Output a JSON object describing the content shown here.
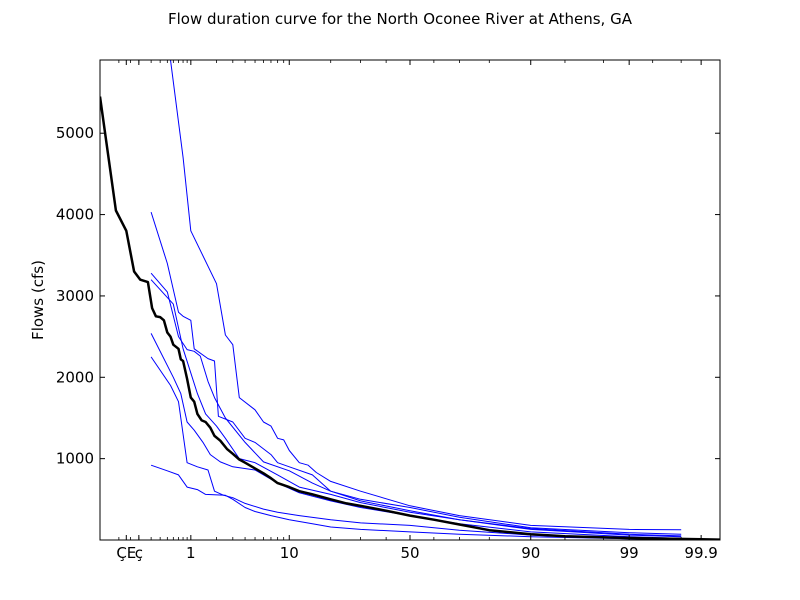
{
  "chart_data": {
    "type": "line",
    "title": "Flow duration curve for the North Oconee River at Athens, GA",
    "xlabel": "",
    "ylabel": "Flows (cfs)",
    "x_scale": "normal probability (exceedance %)",
    "xlim": [
      0.05,
      99.95
    ],
    "ylim": [
      0,
      5900
    ],
    "x_ticks": [
      {
        "value": 0.13,
        "label": "ÇE"
      },
      {
        "value": 0.2,
        "label": "ç"
      },
      {
        "value": 1,
        "label": "1"
      },
      {
        "value": 10,
        "label": "10"
      },
      {
        "value": 50,
        "label": "50"
      },
      {
        "value": 90,
        "label": "90"
      },
      {
        "value": 99,
        "label": "99"
      },
      {
        "value": 99.9,
        "label": "99.9"
      }
    ],
    "y_ticks": [
      1000,
      2000,
      3000,
      4000,
      5000
    ],
    "grid": false,
    "legend": "none",
    "colors": {
      "overall": "#000000",
      "annual": "#0000ff"
    },
    "overall_series": {
      "points": [
        [
          0.05,
          5450
        ],
        [
          0.09,
          4050
        ],
        [
          0.13,
          3800
        ],
        [
          0.17,
          3300
        ],
        [
          0.21,
          3200
        ],
        [
          0.27,
          3170
        ],
        [
          0.31,
          2850
        ],
        [
          0.35,
          2750
        ],
        [
          0.4,
          2740
        ],
        [
          0.45,
          2700
        ],
        [
          0.5,
          2550
        ],
        [
          0.55,
          2500
        ],
        [
          0.6,
          2400
        ],
        [
          0.7,
          2350
        ],
        [
          0.75,
          2220
        ],
        [
          0.8,
          2200
        ],
        [
          0.9,
          1980
        ],
        [
          1.0,
          1750
        ],
        [
          1.1,
          1700
        ],
        [
          1.2,
          1550
        ],
        [
          1.35,
          1470
        ],
        [
          1.5,
          1450
        ],
        [
          1.7,
          1380
        ],
        [
          1.9,
          1280
        ],
        [
          2.2,
          1220
        ],
        [
          2.6,
          1120
        ],
        [
          3,
          1060
        ],
        [
          3.5,
          990
        ],
        [
          4,
          950
        ],
        [
          5,
          880
        ],
        [
          6,
          820
        ],
        [
          7,
          760
        ],
        [
          8,
          700
        ],
        [
          10,
          650
        ],
        [
          12,
          600
        ],
        [
          15,
          560
        ],
        [
          20,
          500
        ],
        [
          25,
          450
        ],
        [
          30,
          420
        ],
        [
          40,
          360
        ],
        [
          50,
          300
        ],
        [
          60,
          250
        ],
        [
          70,
          190
        ],
        [
          80,
          120
        ],
        [
          90,
          70
        ],
        [
          95,
          45
        ],
        [
          99,
          25
        ],
        [
          99.9,
          10
        ],
        [
          99.95,
          5
        ]
      ]
    },
    "annual_series": [
      {
        "points": [
          [
            0.55,
            5900
          ],
          [
            0.8,
            4700
          ],
          [
            1,
            3800
          ],
          [
            2,
            3150
          ],
          [
            2.5,
            2520
          ],
          [
            3,
            2400
          ],
          [
            3.5,
            1750
          ],
          [
            5,
            1600
          ],
          [
            6,
            1450
          ],
          [
            7,
            1400
          ],
          [
            8,
            1250
          ],
          [
            9,
            1230
          ],
          [
            10,
            1100
          ],
          [
            12,
            950
          ],
          [
            14,
            920
          ],
          [
            16,
            830
          ],
          [
            20,
            720
          ],
          [
            30,
            600
          ],
          [
            50,
            420
          ],
          [
            70,
            300
          ],
          [
            90,
            180
          ],
          [
            99,
            130
          ],
          [
            99.8,
            125
          ]
        ]
      },
      {
        "points": [
          [
            0.3,
            4030
          ],
          [
            0.5,
            3400
          ],
          [
            0.7,
            2800
          ],
          [
            0.8,
            2750
          ],
          [
            1.0,
            2700
          ],
          [
            1.1,
            2350
          ],
          [
            1.6,
            2230
          ],
          [
            1.9,
            2200
          ],
          [
            2.1,
            1520
          ],
          [
            3,
            1450
          ],
          [
            4,
            1250
          ],
          [
            5,
            1200
          ],
          [
            7,
            1050
          ],
          [
            8,
            950
          ],
          [
            10,
            900
          ],
          [
            15,
            800
          ],
          [
            20,
            600
          ],
          [
            30,
            500
          ],
          [
            50,
            400
          ],
          [
            70,
            280
          ],
          [
            90,
            150
          ],
          [
            99,
            90
          ],
          [
            99.8,
            70
          ]
        ]
      },
      {
        "points": [
          [
            0.3,
            3280
          ],
          [
            0.5,
            3050
          ],
          [
            0.7,
            2500
          ],
          [
            0.9,
            2340
          ],
          [
            1.1,
            2320
          ],
          [
            1.3,
            2260
          ],
          [
            1.6,
            1950
          ],
          [
            1.9,
            1750
          ],
          [
            2.5,
            1500
          ],
          [
            4,
            1200
          ],
          [
            6,
            960
          ],
          [
            10,
            850
          ],
          [
            15,
            700
          ],
          [
            20,
            600
          ],
          [
            30,
            480
          ],
          [
            50,
            360
          ],
          [
            70,
            250
          ],
          [
            90,
            140
          ],
          [
            99,
            70
          ],
          [
            99.8,
            50
          ]
        ]
      },
      {
        "points": [
          [
            0.3,
            3200
          ],
          [
            0.6,
            2900
          ],
          [
            0.8,
            2350
          ],
          [
            1.2,
            1800
          ],
          [
            1.5,
            1550
          ],
          [
            2.0,
            1400
          ],
          [
            2.5,
            1250
          ],
          [
            3.5,
            1000
          ],
          [
            5,
            950
          ],
          [
            8,
            800
          ],
          [
            12,
            650
          ],
          [
            20,
            560
          ],
          [
            30,
            460
          ],
          [
            50,
            340
          ],
          [
            70,
            250
          ],
          [
            90,
            130
          ],
          [
            99,
            60
          ],
          [
            99.8,
            40
          ]
        ]
      },
      {
        "points": [
          [
            0.3,
            2540
          ],
          [
            0.6,
            2000
          ],
          [
            0.75,
            1800
          ],
          [
            0.9,
            1450
          ],
          [
            1.1,
            1350
          ],
          [
            1.4,
            1200
          ],
          [
            1.7,
            1050
          ],
          [
            2.2,
            960
          ],
          [
            3,
            900
          ],
          [
            5,
            860
          ],
          [
            8,
            700
          ],
          [
            12,
            580
          ],
          [
            20,
            480
          ],
          [
            30,
            400
          ],
          [
            50,
            300
          ],
          [
            70,
            200
          ],
          [
            90,
            100
          ],
          [
            99,
            40
          ],
          [
            99.8,
            20
          ]
        ]
      },
      {
        "points": [
          [
            0.3,
            2250
          ],
          [
            0.55,
            1900
          ],
          [
            0.7,
            1700
          ],
          [
            0.9,
            950
          ],
          [
            1.2,
            900
          ],
          [
            1.6,
            860
          ],
          [
            1.9,
            600
          ],
          [
            2.4,
            550
          ],
          [
            3,
            520
          ],
          [
            4,
            450
          ],
          [
            6,
            380
          ],
          [
            8,
            340
          ],
          [
            12,
            300
          ],
          [
            20,
            250
          ],
          [
            30,
            210
          ],
          [
            50,
            180
          ],
          [
            70,
            120
          ],
          [
            90,
            60
          ],
          [
            99,
            25
          ],
          [
            99.8,
            10
          ]
        ]
      },
      {
        "points": [
          [
            0.3,
            920
          ],
          [
            0.5,
            850
          ],
          [
            0.7,
            800
          ],
          [
            0.9,
            650
          ],
          [
            1.2,
            620
          ],
          [
            1.5,
            560
          ],
          [
            2.5,
            550
          ],
          [
            3,
            500
          ],
          [
            4,
            400
          ],
          [
            5,
            350
          ],
          [
            7,
            300
          ],
          [
            10,
            250
          ],
          [
            15,
            200
          ],
          [
            20,
            160
          ],
          [
            30,
            130
          ],
          [
            50,
            100
          ],
          [
            70,
            70
          ],
          [
            90,
            40
          ],
          [
            99,
            15
          ],
          [
            99.8,
            5
          ]
        ]
      }
    ]
  }
}
